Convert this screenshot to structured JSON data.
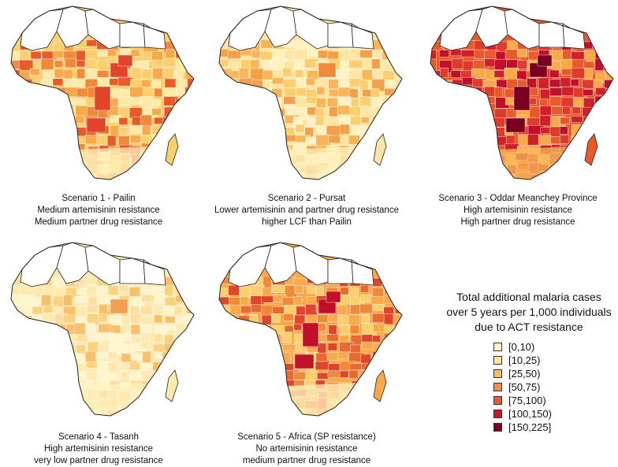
{
  "panels": [
    {
      "title": "Scenario 1 - Pailin",
      "line2": "Medium artemisinin resistance",
      "line3": "Medium partner drug resistance",
      "palette": [
        "#fde9a8",
        "#fbcf6e",
        "#f8a94a",
        "#f08a3a",
        "#e85a2a"
      ],
      "hot": "#e0452a"
    },
    {
      "title": "Scenario 2 - Pursat",
      "line2": "Lower artemisinin and partner drug resistance",
      "line3": "higher LCF than Pailin",
      "palette": [
        "#fff1c0",
        "#fde5a3",
        "#fbcf6e",
        "#f8b55a",
        "#f3a04a"
      ],
      "hot": "#f08a3a"
    },
    {
      "title": "Scenario 3 - Oddar Meanchey Province",
      "line2": "High artemisinin resistance",
      "line3": "High partner drug resistance",
      "palette": [
        "#f8a94a",
        "#e85a2a",
        "#d0202a",
        "#c0102a",
        "#e03a2a"
      ],
      "hot": "#7a0020"
    },
    {
      "title": "Scenario 4 - Tasanh",
      "line2": "High artemisinin resistance",
      "line3": "very low partner drug resistance",
      "palette": [
        "#fff4cc",
        "#fdeab0",
        "#fde0a0",
        "#fbd27e",
        "#f8c06a"
      ],
      "hot": "#f0a050"
    },
    {
      "title": "Scenario 5 - Africa (SP resistance)",
      "line2": "No artemisinin resistance",
      "line3": "medium partner drug resistance",
      "palette": [
        "#fbcf6e",
        "#f8a94a",
        "#f08a3a",
        "#e86a30",
        "#e0452a"
      ],
      "hot": "#c0102a"
    }
  ],
  "legend": {
    "title_line1": "Total additional malaria cases",
    "title_line2": "over 5 years per 1,000 individuals",
    "title_line3": "due  to ACT resistance",
    "items": [
      {
        "label": "[0,10)",
        "color": "#fff7c4"
      },
      {
        "label": "[10,25)",
        "color": "#fde59a"
      },
      {
        "label": "[25,50)",
        "color": "#f9bd5c"
      },
      {
        "label": "[50,75)",
        "color": "#f59042"
      },
      {
        "label": "[75,100)",
        "color": "#ee5a2e"
      },
      {
        "label": "[100,150)",
        "color": "#cf1624"
      },
      {
        "label": "[150,225]",
        "color": "#800020"
      }
    ]
  }
}
